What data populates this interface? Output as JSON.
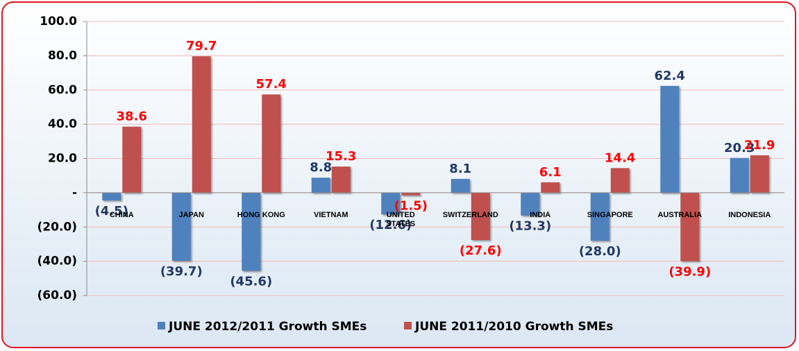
{
  "chart_data": {
    "type": "bar",
    "categories": [
      "CHINA",
      "JAPAN",
      "HONG KONG",
      "VIETNAM",
      "UNITED STATES",
      "SWITZERLAND",
      "INDIA",
      "SINGAPORE",
      "AUSTRALIA",
      "INDONESIA"
    ],
    "series": [
      {
        "name": "JUNE 2012/2011 Growth SMEs",
        "color": "#4f81bd",
        "label_color": "#1f3864",
        "values": [
          -4.5,
          -39.7,
          -45.6,
          8.8,
          -12.6,
          8.1,
          -13.3,
          -28.0,
          62.4,
          20.3
        ],
        "value_labels": [
          "(4.5)",
          "(39.7)",
          "(45.6)",
          "8.8",
          "(12.6)",
          "8.1",
          "(13.3)",
          "(28.0)",
          "62.4",
          "20.3"
        ]
      },
      {
        "name": "JUNE 2011/2010 Growth SMEs",
        "color": "#c0504d",
        "label_color": "#ff0000",
        "values": [
          38.6,
          79.7,
          57.4,
          15.3,
          -1.5,
          -27.6,
          6.1,
          14.4,
          -39.9,
          21.9
        ],
        "value_labels": [
          "38.6",
          "79.7",
          "57.4",
          "15.3",
          "(1.5)",
          "(27.6)",
          "6.1",
          "14.4",
          "(39.9)",
          "21.9"
        ]
      }
    ],
    "ylim": [
      -60,
      100
    ],
    "yticks": [
      {
        "value": -60,
        "label": "(60.0)"
      },
      {
        "value": -40,
        "label": "(40.0)"
      },
      {
        "value": -20,
        "label": "(20.0)"
      },
      {
        "value": 0,
        "label": "-"
      },
      {
        "value": 20,
        "label": "20.0"
      },
      {
        "value": 40,
        "label": "40.0"
      },
      {
        "value": 60,
        "label": "60.0"
      },
      {
        "value": 80,
        "label": "80.0"
      },
      {
        "value": 100,
        "label": "100.0"
      }
    ],
    "grid": true,
    "legend": "bottom"
  }
}
